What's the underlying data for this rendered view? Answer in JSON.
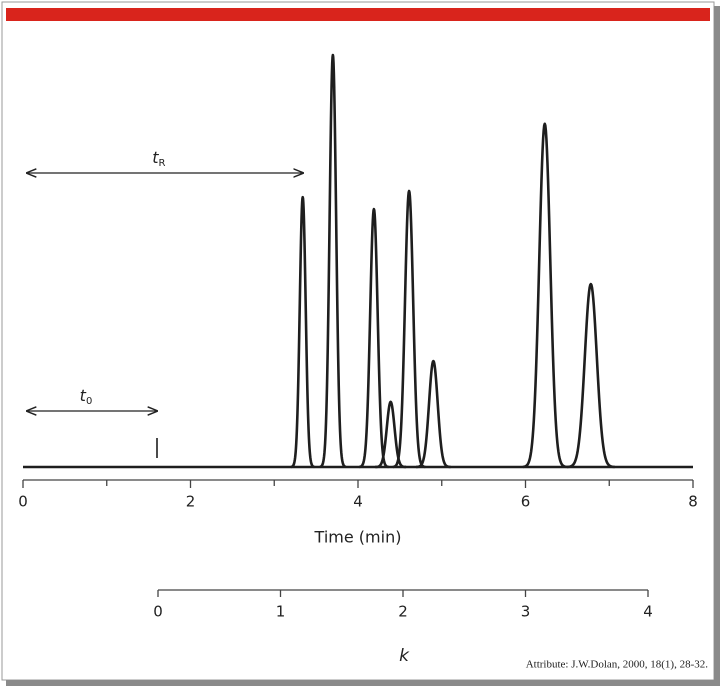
{
  "chart_data": {
    "type": "chromatogram",
    "x": [
      3.34,
      3.7,
      4.19,
      4.39,
      4.61,
      4.9,
      6.23,
      6.78
    ],
    "values": [
      65.5,
      100,
      62.6,
      15.8,
      67,
      25.7,
      83.3,
      44.4
    ],
    "ylim": [
      0,
      100
    ],
    "xlim": [
      0,
      8
    ],
    "xticks": [
      0,
      2,
      4,
      6,
      8
    ],
    "xminor_ticks": [
      1,
      3,
      5,
      7
    ],
    "xlabel": "Time (min)",
    "klim": [
      0,
      4
    ],
    "kticks": [
      0,
      1,
      2,
      3,
      4
    ],
    "klabel": "k",
    "t0_marker": 1.6,
    "annotations": [
      {
        "text": "t",
        "sub": "0",
        "from": 0,
        "to": 1.6
      },
      {
        "text": "t",
        "sub": "R",
        "from": 0,
        "to": 3.34
      }
    ],
    "color": "#1e1e1e",
    "attribution": "Attribute: J.W.Dolan, 2000, 18(1), 28-32."
  }
}
